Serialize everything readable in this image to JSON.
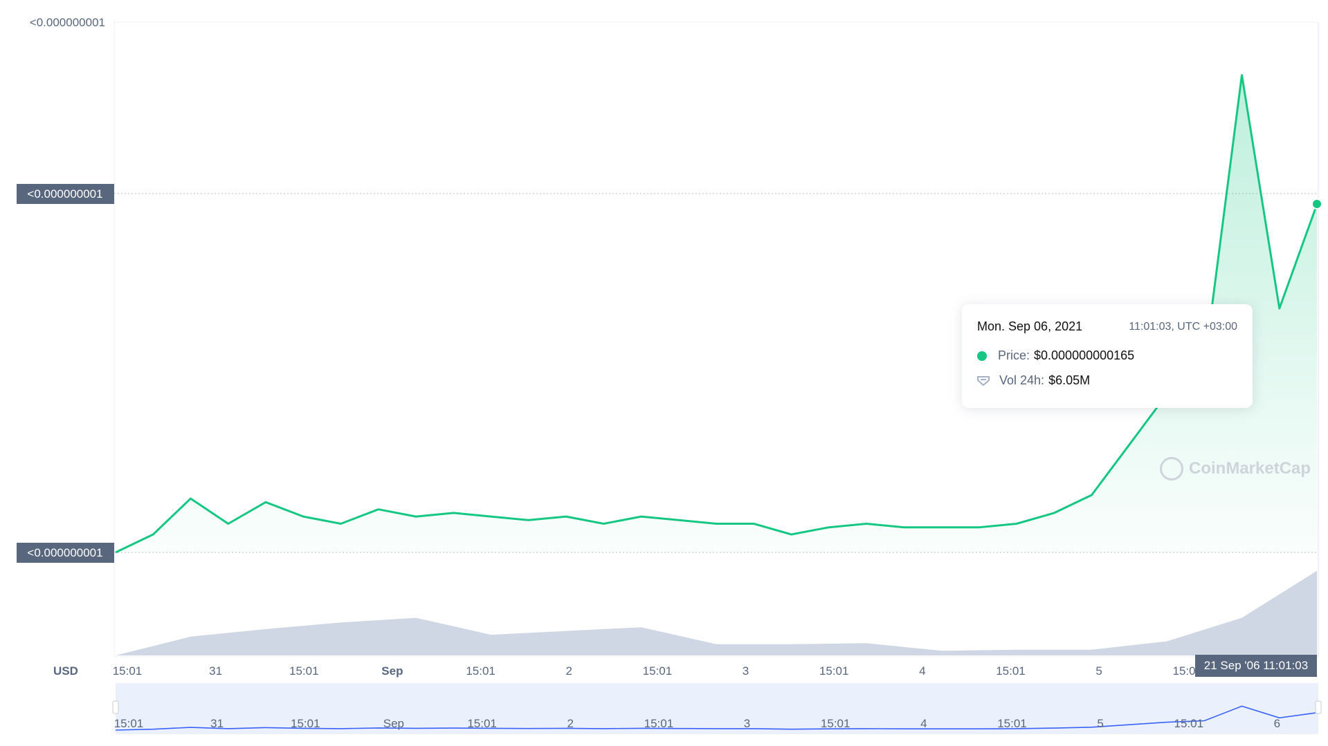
{
  "chart_data": {
    "type": "area",
    "currency": "USD",
    "y_axis_labels": [
      "<0.000000001",
      "<0.000000001",
      "<0.000000001"
    ],
    "x_tick_labels": [
      "15:01",
      "31",
      "15:01",
      "Sep",
      "15:01",
      "2",
      "15:01",
      "3",
      "15:01",
      "4",
      "15:01",
      "5",
      "15:01"
    ],
    "navigator_tick_labels": [
      "15:01",
      "31",
      "15:01",
      "Sep",
      "15:01",
      "2",
      "15:01",
      "3",
      "15:01",
      "4",
      "15:01",
      "5",
      "15:01",
      "6"
    ],
    "price_series": {
      "name": "Price",
      "x": [
        "Aug 30 15:01",
        "Aug 31 03:00",
        "Aug 31 09:00",
        "Aug 31 15:01",
        "Aug 31 21:00",
        "Sep 1 00:00",
        "Sep 1 03:00",
        "Sep 1 09:00",
        "Sep 1 15:01",
        "Sep 1 21:00",
        "Sep 2 03:00",
        "Sep 2 09:00",
        "Sep 2 15:01",
        "Sep 2 21:00",
        "Sep 3 03:00",
        "Sep 3 09:00",
        "Sep 3 15:01",
        "Sep 3 21:00",
        "Sep 4 00:00",
        "Sep 4 03:00",
        "Sep 4 09:00",
        "Sep 4 15:01",
        "Sep 4 21:00",
        "Sep 5 03:00",
        "Sep 5 09:00",
        "Sep 5 15:01",
        "Sep 5 21:00",
        "Sep 6 02:00",
        "Sep 6 05:00",
        "Sep 6 08:00",
        "Sep 6 09:00",
        "Sep 6 10:00",
        "Sep 6 11:01"
      ],
      "y_index": [
        0.0,
        0.05,
        0.15,
        0.08,
        0.14,
        0.1,
        0.08,
        0.12,
        0.1,
        0.11,
        0.1,
        0.09,
        0.1,
        0.08,
        0.1,
        0.09,
        0.08,
        0.08,
        0.05,
        0.07,
        0.08,
        0.07,
        0.07,
        0.07,
        0.08,
        0.11,
        0.16,
        0.3,
        0.44,
        0.52,
        1.33,
        0.68,
        0.97
      ]
    },
    "volume_series": {
      "name": "Vol 24h",
      "values_index": [
        0.0,
        0.2,
        0.28,
        0.35,
        0.4,
        0.22,
        0.26,
        0.3,
        0.12,
        0.12,
        0.13,
        0.05,
        0.06,
        0.06,
        0.15,
        0.4,
        0.9
      ]
    }
  },
  "tooltip": {
    "date": "Mon. Sep 06, 2021",
    "time": "11:01:03, UTC +03:00",
    "price_label": "Price:",
    "price_value": "$0.000000000165",
    "vol_label": "Vol 24h:",
    "vol_value": "$6.05M"
  },
  "watermark": "CoinMarketCap",
  "cursor_label": "21 Sep '06 11:01:03",
  "colors": {
    "price_line": "#16c784",
    "volume_fill": "#cfd6e4",
    "navigator_line": "#3861fb",
    "label_box": "#58667e"
  }
}
